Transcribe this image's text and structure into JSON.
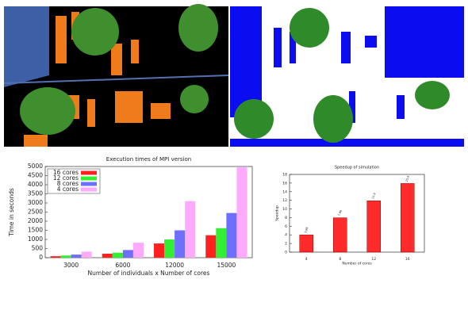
{
  "chart_data": [
    {
      "type": "bar",
      "title": "Execution times of MPI version",
      "x_label": "Number of individuals x Number of cores",
      "y_label": "Time in seconds",
      "categories": [
        "3000",
        "6000",
        "12000",
        "15000"
      ],
      "series": [
        {
          "name": "16 cores",
          "color": "#ff2020",
          "values": [
            80,
            220,
            780,
            1230
          ]
        },
        {
          "name": "12 cores",
          "color": "#33ee33",
          "values": [
            120,
            270,
            1000,
            1620
          ]
        },
        {
          "name": "8 cores",
          "color": "#6f6fff",
          "values": [
            170,
            420,
            1500,
            2450
          ]
        },
        {
          "name": "4 cores",
          "color": "#ffaaff",
          "values": [
            330,
            820,
            3100,
            4950
          ]
        }
      ],
      "ylim": [
        0,
        5000
      ],
      "yticks": [
        0,
        500,
        1000,
        1500,
        2000,
        2500,
        3000,
        3500,
        4000,
        4500,
        5000
      ],
      "legend": "top-left"
    },
    {
      "type": "bar",
      "title": "Speedup of simulation",
      "x_label": "Number of cores",
      "y_label": "Speedup",
      "categories": [
        "4",
        "8",
        "12",
        "16"
      ],
      "series": [
        {
          "name": null,
          "color": "#ff2a2a",
          "values": [
            3.98,
            7.96,
            11.9,
            15.9
          ]
        }
      ],
      "ylim": [
        0,
        18
      ],
      "yticks": [
        0,
        2,
        4,
        6,
        8,
        10,
        12,
        14,
        16,
        18
      ]
    }
  ]
}
